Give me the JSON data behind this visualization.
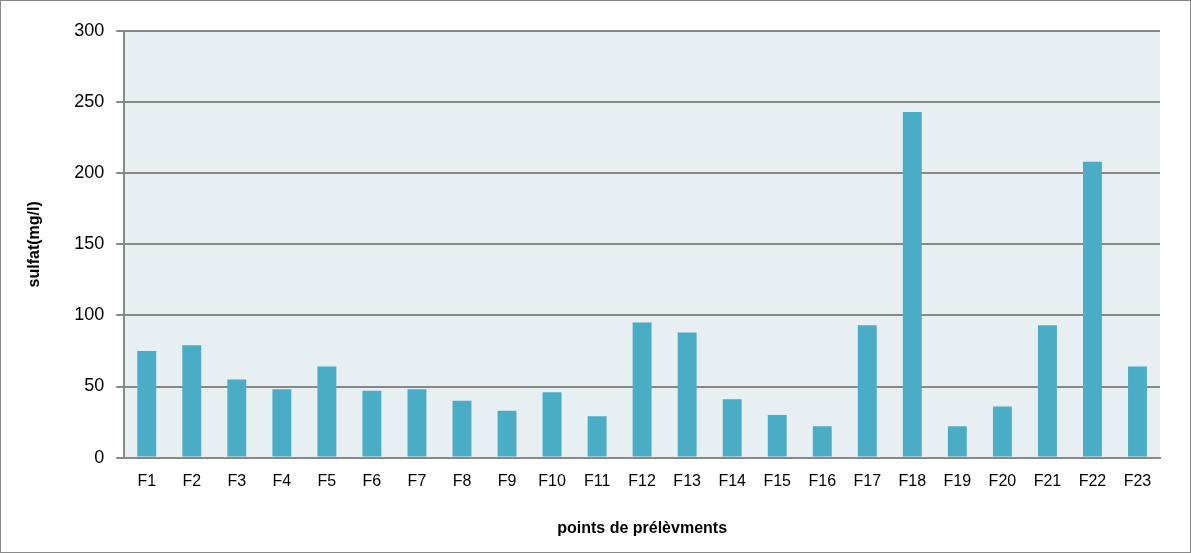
{
  "chart_data": {
    "type": "bar",
    "xlabel": "points de prélèvments",
    "ylabel": "sulfat(mg/l)",
    "categories": [
      "F1",
      "F2",
      "F3",
      "F4",
      "F5",
      "F6",
      "F7",
      "F8",
      "F9",
      "F10",
      "F11",
      "F12",
      "F13",
      "F14",
      "F15",
      "F16",
      "F17",
      "F18",
      "F19",
      "F20",
      "F21",
      "F22",
      "F23"
    ],
    "values": [
      75,
      79,
      55,
      48,
      64,
      47,
      48,
      40,
      33,
      46,
      29,
      95,
      88,
      41,
      30,
      22,
      93,
      243,
      22,
      36,
      93,
      208,
      64
    ],
    "color": "#4bacc6",
    "ylim": [
      0,
      300
    ],
    "yticks": [
      0,
      50,
      100,
      150,
      200,
      250,
      300
    ],
    "grid": "y",
    "legend": false
  }
}
